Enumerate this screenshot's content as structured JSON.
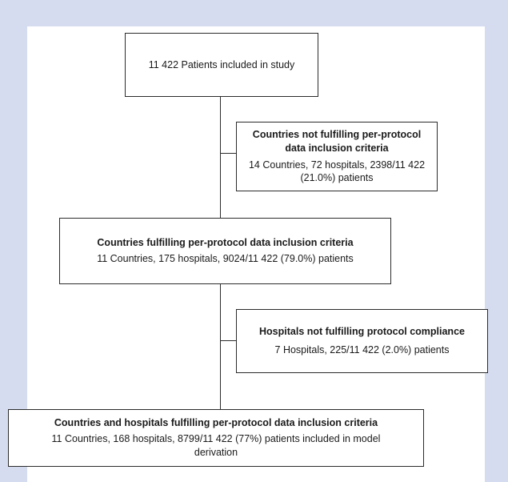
{
  "flowchart": {
    "start": {
      "text": "11 422 Patients included in study"
    },
    "exclusion_1": {
      "title": "Countries not fulfilling per-protocol data inclusion criteria",
      "detail": "14 Countries, 72 hospitals, 2398/11 422 (21.0%)  patients"
    },
    "step_2": {
      "title": "Countries fulfilling per-protocol data inclusion criteria",
      "detail": "11 Countries, 175 hospitals, 9024/11 422 (79.0%) patients"
    },
    "exclusion_2": {
      "title": "Hospitals not fulfilling protocol compliance",
      "detail": "7 Hospitals, 225/11 422 (2.0%) patients"
    },
    "final": {
      "title": "Countries and hospitals fulfilling per-protocol data inclusion criteria",
      "detail": "11 Countries, 168 hospitals, 8799/11 422 (77%) patients included in model derivation"
    }
  }
}
